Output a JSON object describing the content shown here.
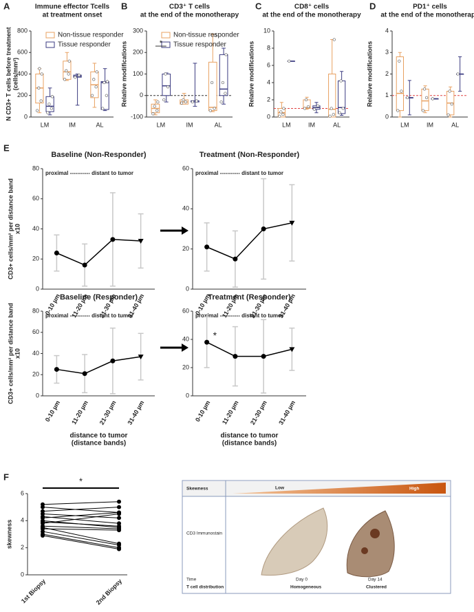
{
  "panel_labels": [
    "A",
    "B",
    "C",
    "D",
    "E",
    "F"
  ],
  "chart_data": [
    {
      "type": "box",
      "title": [
        "Immune effector Tcells",
        "at treatment onset"
      ],
      "ylabel": [
        "N CD3+ T cells before treatment",
        "(cells/mm²)"
      ],
      "categories": [
        "LM",
        "IM",
        "AL"
      ],
      "ylim": [
        0,
        800
      ],
      "yticks": [
        0,
        200,
        400,
        600,
        800
      ],
      "hline": {
        "value": 0,
        "color": "#333333"
      },
      "legend": "top",
      "series": [
        {
          "name": "Non-tissue responder",
          "color": "#e8a060",
          "values": [
            {
              "min": 40,
              "q1": 130,
              "median": 270,
              "q3": 400,
              "max": 450,
              "points": [
                60,
                150,
                270,
                400,
                450
              ]
            },
            {
              "min": 340,
              "q1": 350,
              "median": 420,
              "q3": 520,
              "max": 600,
              "points": [
                350,
                400,
                430,
                520
              ]
            },
            {
              "min": 90,
              "q1": 180,
              "median": 300,
              "q3": 420,
              "max": 500,
              "points": [
                200,
                280,
                350,
                420
              ]
            }
          ]
        },
        {
          "name": "Tissue responder",
          "color": "#3a3a80",
          "values": [
            {
              "min": 20,
              "q1": 50,
              "median": 100,
              "q3": 190,
              "max": 270,
              "points": [
                40,
                80,
                120,
                190
              ]
            },
            {
              "min": 110,
              "q1": 370,
              "median": 380,
              "q3": 390,
              "max": 400,
              "points": [
                370,
                390
              ]
            },
            {
              "min": 60,
              "q1": 70,
              "median": 320,
              "q3": 330,
              "max": 450,
              "points": [
                80,
                200,
                320,
                330
              ]
            }
          ]
        }
      ]
    },
    {
      "type": "box",
      "title": [
        "CD3⁺ T cells",
        "at the end of the monotherapy"
      ],
      "ylabel": "Relative modifications",
      "categories": [
        "LM",
        "IM",
        "AL"
      ],
      "ylim": [
        -100,
        300
      ],
      "yticks": [
        -100,
        0,
        100,
        200,
        300
      ],
      "hline": {
        "value": 0,
        "color": "#333333"
      },
      "legend": "top",
      "annotation": "*",
      "series": [
        {
          "name": "Non-tissue responder",
          "color": "#e8a060",
          "values": [
            {
              "min": -90,
              "q1": -80,
              "median": -60,
              "q3": -40,
              "max": -20,
              "points": [
                -85,
                -70,
                -50,
                -30
              ]
            },
            {
              "min": -40,
              "q1": -40,
              "median": -30,
              "q3": -20,
              "max": 10,
              "points": [
                -35,
                -30,
                -20
              ]
            },
            {
              "min": -75,
              "q1": -70,
              "median": -55,
              "q3": 155,
              "max": 285,
              "points": [
                -70,
                -60,
                60,
                280
              ]
            }
          ]
        },
        {
          "name": "Tissue responder",
          "color": "#3a3a80",
          "values": [
            {
              "min": -30,
              "q1": 0,
              "median": 45,
              "q3": 100,
              "max": 105,
              "points": [
                -20,
                40,
                100
              ]
            },
            {
              "min": -50,
              "q1": -30,
              "median": -25,
              "q3": -25,
              "max": 150,
              "points": [
                -30,
                -25
              ]
            },
            {
              "min": -40,
              "q1": 0,
              "median": 30,
              "q3": 190,
              "max": 220,
              "points": [
                -30,
                10,
                60,
                190
              ]
            }
          ]
        }
      ]
    },
    {
      "type": "box",
      "title": [
        "CD8⁺ cells",
        "at the end of the monotherapy"
      ],
      "ylabel": "Relative modifications",
      "categories": [
        "LM",
        "IM",
        "AL"
      ],
      "ylim": [
        0,
        10
      ],
      "yticks": [
        0,
        2,
        4,
        6,
        8,
        10
      ],
      "hline": {
        "value": 1,
        "color": "#e04040"
      },
      "series": [
        {
          "name": "Non-tissue responder",
          "color": "#e8a060",
          "values": [
            {
              "min": 0,
              "q1": 0,
              "median": 0.5,
              "q3": 1,
              "max": 1.7,
              "points": [
                0.1,
                0.3,
                0.6,
                1.0
              ]
            },
            {
              "min": 0.9,
              "q1": 1,
              "median": 1.1,
              "q3": 2,
              "max": 2.3,
              "points": [
                1.0,
                1.2,
                2.0
              ]
            },
            {
              "min": 0,
              "q1": 0,
              "median": 0.9,
              "q3": 5,
              "max": 9,
              "points": [
                0.1,
                0.3,
                1.0,
                9
              ]
            }
          ]
        },
        {
          "name": "Tissue responder",
          "color": "#3a3a80",
          "values": [
            {
              "min": 6.5,
              "q1": 6.5,
              "median": 6.5,
              "q3": 6.5,
              "max": 6.5,
              "points": [
                6.5
              ]
            },
            {
              "min": 0.5,
              "q1": 0.9,
              "median": 1.1,
              "q3": 1.3,
              "max": 1.7,
              "points": [
                0.9,
                1.3
              ]
            },
            {
              "min": 0.2,
              "q1": 0.4,
              "median": 1.1,
              "q3": 4.2,
              "max": 5.3,
              "points": [
                0.5,
                1.0,
                4.2
              ]
            }
          ]
        }
      ]
    },
    {
      "type": "box",
      "title": [
        "PD1⁺ cells",
        "at the end of the monotherapy"
      ],
      "ylabel": "Relative modifications",
      "categories": [
        "LM",
        "IM",
        "AL"
      ],
      "ylim": [
        0,
        4
      ],
      "yticks": [
        0,
        1,
        2,
        3,
        4
      ],
      "hline": {
        "value": 1,
        "color": "#e04040"
      },
      "series": [
        {
          "name": "Non-tissue responder",
          "color": "#e8a060",
          "values": [
            {
              "min": 0,
              "q1": 0.3,
              "median": 1.1,
              "q3": 2.8,
              "max": 3.0,
              "points": [
                0.3,
                1.2,
                2.6
              ]
            },
            {
              "min": 0.2,
              "q1": 0.3,
              "median": 0.75,
              "q3": 1.3,
              "max": 1.45,
              "points": [
                0.3,
                0.9,
                1.3
              ]
            },
            {
              "min": 0,
              "q1": 0.1,
              "median": 0.65,
              "q3": 1.2,
              "max": 1.4,
              "points": [
                0.1,
                0.6,
                1.2
              ]
            }
          ]
        },
        {
          "name": "Tissue responder",
          "color": "#3a3a80",
          "values": [
            {
              "min": 0.1,
              "q1": 0.9,
              "median": 0.9,
              "q3": 0.9,
              "max": 1.7,
              "points": [
                0.9
              ]
            },
            {
              "min": 0.85,
              "q1": 0.85,
              "median": 0.85,
              "q3": 0.85,
              "max": 0.85,
              "points": [
                0.85
              ]
            },
            {
              "min": 1.2,
              "q1": 2.0,
              "median": 2.0,
              "q3": 2.0,
              "max": 2.8,
              "points": [
                2.0
              ]
            }
          ]
        }
      ]
    },
    {
      "type": "line",
      "title": "Baseline (Non-Responder)",
      "subtitle": "proximal ----------- distant to tumor",
      "ylabel": [
        "CD3+ cells/mm² per distance band",
        "x10"
      ],
      "categories": [
        "0-10 µm",
        "11-20 µm",
        "21-30 µm",
        "31-40 µm"
      ],
      "ylim": [
        0,
        80
      ],
      "yticks": [
        0,
        20,
        40,
        60,
        80
      ],
      "series": [
        {
          "color": "#000000",
          "error_color": "#c8c8c8",
          "values": [
            24,
            16,
            33,
            32
          ],
          "errors": [
            12,
            14,
            31,
            18
          ]
        }
      ]
    },
    {
      "type": "line",
      "title": "Treatment (Non-Responder)",
      "subtitle": "proximal ----------- distant to tumor",
      "categories": [
        "0-10 µm",
        "11-20 µm",
        "21-30 µm",
        "31-40 µm"
      ],
      "ylim": [
        0,
        60
      ],
      "yticks": [
        0,
        20,
        40,
        60
      ],
      "series": [
        {
          "color": "#000000",
          "error_color": "#c8c8c8",
          "values": [
            21,
            15,
            30,
            33
          ],
          "errors": [
            12,
            14,
            25,
            19
          ]
        }
      ]
    },
    {
      "type": "line",
      "title": "Baseline (Responder)",
      "subtitle": "proximal ----------- distant to tumor",
      "ylabel": [
        "CD3+ cells/mm² per distance band",
        "x10"
      ],
      "xlabel": [
        "distance to tumor",
        "(distance bands)"
      ],
      "categories": [
        "0-10 µm",
        "11-20 µm",
        "21-30 µm",
        "31-40 µm"
      ],
      "ylim": [
        0,
        80
      ],
      "yticks": [
        0,
        20,
        40,
        60,
        80
      ],
      "series": [
        {
          "color": "#000000",
          "error_color": "#c8c8c8",
          "values": [
            25,
            21,
            33,
            37
          ],
          "errors": [
            13,
            18,
            31,
            22
          ]
        }
      ]
    },
    {
      "type": "line",
      "title": "Treatment (Responder)",
      "subtitle": "proximal ----------- distant to tumor",
      "xlabel": [
        "distance to tumor",
        "(distance bands)"
      ],
      "annotation": "*",
      "categories": [
        "0-10 µm",
        "11-20 µm",
        "21-30 µm",
        "31-40 µm"
      ],
      "ylim": [
        0,
        60
      ],
      "yticks": [
        0,
        20,
        40,
        60
      ],
      "series": [
        {
          "color": "#000000",
          "error_color": "#c8c8c8",
          "values": [
            38,
            28,
            28,
            33
          ],
          "errors": [
            18,
            21,
            26,
            15
          ]
        }
      ]
    },
    {
      "type": "paired",
      "ylabel": "skewness",
      "categories": [
        "1st Biopsy",
        "2nd Biopsy"
      ],
      "ylim": [
        0,
        6
      ],
      "yticks": [
        0,
        2,
        4,
        6
      ],
      "annotation": "*",
      "color": "#000000",
      "series": [
        {
          "values": [
            5.2,
            5.4
          ]
        },
        {
          "values": [
            5.0,
            4.6
          ]
        },
        {
          "values": [
            4.7,
            5.0
          ]
        },
        {
          "values": [
            4.5,
            4.2
          ]
        },
        {
          "values": [
            4.3,
            3.8
          ]
        },
        {
          "values": [
            4.2,
            4.6
          ]
        },
        {
          "values": [
            4.0,
            3.5
          ]
        },
        {
          "values": [
            3.9,
            3.6
          ]
        },
        {
          "values": [
            3.8,
            4.5
          ]
        },
        {
          "values": [
            3.6,
            3.4
          ]
        },
        {
          "values": [
            3.5,
            2.3
          ]
        },
        {
          "values": [
            3.4,
            3.3
          ]
        },
        {
          "values": [
            3.2,
            2.2
          ]
        },
        {
          "values": [
            3.0,
            2.0
          ]
        },
        {
          "values": [
            2.9,
            1.9
          ]
        }
      ]
    }
  ],
  "illustration": {
    "skewness": "Skewness",
    "low": "Low",
    "high": "High",
    "stain": "CD3 Immunostain",
    "time": "Time",
    "day0": "Day 0",
    "day14": "Day 14",
    "distribution": "T cell distribution",
    "homogeneous": "Homogeneous",
    "clustered": "Clustered"
  }
}
